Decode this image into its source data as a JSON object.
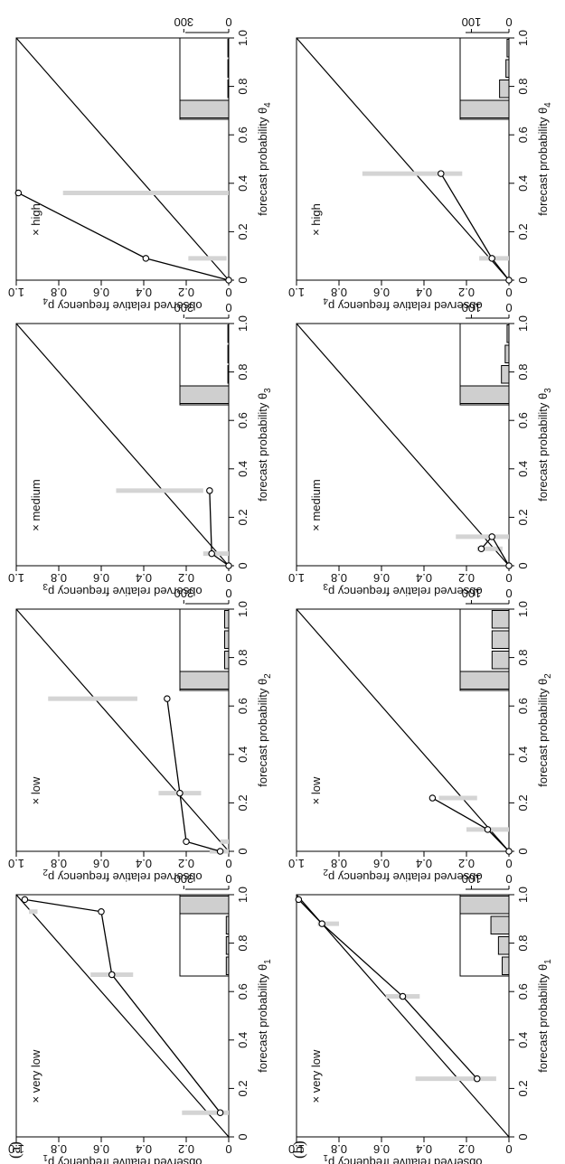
{
  "panel_labels": [
    "(a)",
    "(b)"
  ],
  "xticks": [
    "0",
    "0.2",
    "0.4",
    "0.6",
    "0.8",
    "1.0"
  ],
  "yticks": [
    "0",
    "0.2",
    "0.4",
    "0.6",
    "0.8",
    "1.0"
  ],
  "colors": {
    "ci_band": "#d4d4d4",
    "hist_fill": "#cfcfcf",
    "line": "#000000"
  },
  "chart_data": [
    {
      "type": "line",
      "panel": "(a)",
      "title": "× very low",
      "xlabel": "forecast probability θ",
      "xlabel_sub": "1",
      "ylabel": "observed relative frequency p",
      "ylabel_sub": "1",
      "xlim": [
        0,
        1
      ],
      "ylim": [
        0,
        1
      ],
      "series": [
        {
          "x": [
            0.1,
            0.67,
            0.93,
            0.98
          ],
          "y": [
            0.04,
            0.55,
            0.6,
            0.96
          ]
        }
      ],
      "bands": [
        {
          "x": 0.1,
          "lo": 0.0,
          "hi": 0.22
        },
        {
          "x": 0.67,
          "lo": 0.45,
          "hi": 0.65
        },
        {
          "x": 0.93,
          "lo": 0.9,
          "hi": 0.94
        }
      ],
      "hist": {
        "ticks": [
          "300",
          "0"
        ],
        "max": 300,
        "values": [
          15,
          15,
          15,
          300
        ]
      }
    },
    {
      "type": "line",
      "panel": "(a)",
      "title": "× low",
      "xlabel": "forecast probability θ",
      "xlabel_sub": "2",
      "ylabel": "observed relative frequency p",
      "ylabel_sub": "2",
      "xlim": [
        0,
        1
      ],
      "ylim": [
        0,
        1
      ],
      "series": [
        {
          "x": [
            0.0,
            0.04,
            0.24,
            0.63
          ],
          "y": [
            0.04,
            0.2,
            0.23,
            0.29
          ]
        }
      ],
      "bands": [
        {
          "x": 0.0,
          "lo": 0.0,
          "hi": 0.09
        },
        {
          "x": 0.04,
          "lo": 0.0,
          "hi": 0.04
        },
        {
          "x": 0.24,
          "lo": 0.13,
          "hi": 0.33
        },
        {
          "x": 0.63,
          "lo": 0.43,
          "hi": 0.85
        }
      ],
      "hist": {
        "ticks": [
          "300",
          "0"
        ],
        "max": 300,
        "values": [
          300,
          25,
          25,
          25
        ]
      }
    },
    {
      "type": "line",
      "panel": "(a)",
      "title": "× medium",
      "xlabel": "forecast probability θ",
      "xlabel_sub": "3",
      "ylabel": "observed relative frequency p",
      "ylabel_sub": "3",
      "xlim": [
        0,
        1
      ],
      "ylim": [
        0,
        1
      ],
      "series": [
        {
          "x": [
            0.0,
            0.05,
            0.31
          ],
          "y": [
            0.0,
            0.08,
            0.09
          ]
        }
      ],
      "bands": [
        {
          "x": 0.05,
          "lo": 0.0,
          "hi": 0.12
        },
        {
          "x": 0.31,
          "lo": 0.12,
          "hi": 0.53
        }
      ],
      "hist": {
        "ticks": [
          "300",
          "0"
        ],
        "max": 300,
        "values": [
          300,
          5,
          5,
          5
        ]
      }
    },
    {
      "type": "line",
      "panel": "(a)",
      "title": "× high",
      "xlabel": "forecast probability θ",
      "xlabel_sub": "4",
      "ylabel": "observed relative frequency p",
      "ylabel_sub": "4",
      "xlim": [
        0,
        1
      ],
      "ylim": [
        0,
        1
      ],
      "series": [
        {
          "x": [
            0.0,
            0.09,
            0.36
          ],
          "y": [
            0.0,
            0.39,
            0.99
          ]
        }
      ],
      "bands": [
        {
          "x": 0.09,
          "lo": 0.01,
          "hi": 0.19
        },
        {
          "x": 0.36,
          "lo": 0.0,
          "hi": 0.78
        }
      ],
      "hist": {
        "ticks": [
          "300",
          "0"
        ],
        "max": 300,
        "values": [
          300,
          5,
          5,
          5
        ]
      }
    },
    {
      "type": "line",
      "panel": "(b)",
      "title": "× very low",
      "xlabel": "forecast probability θ",
      "xlabel_sub": "1",
      "ylabel": "observed relative frequency p",
      "ylabel_sub": "1",
      "xlim": [
        0,
        1
      ],
      "ylim": [
        0,
        1
      ],
      "series": [
        {
          "x": [
            0.24,
            0.58,
            0.88,
            0.98
          ],
          "y": [
            0.15,
            0.5,
            0.88,
            0.99
          ]
        }
      ],
      "bands": [
        {
          "x": 0.24,
          "lo": 0.06,
          "hi": 0.44
        },
        {
          "x": 0.58,
          "lo": 0.42,
          "hi": 0.58
        },
        {
          "x": 0.88,
          "lo": 0.8,
          "hi": 0.9
        }
      ],
      "hist": {
        "ticks": [
          "100",
          "0"
        ],
        "max": 130,
        "values": [
          18,
          28,
          48,
          130
        ]
      }
    },
    {
      "type": "line",
      "panel": "(b)",
      "title": "× low",
      "xlabel": "forecast probability θ",
      "xlabel_sub": "2",
      "ylabel": "observed relative frequency p",
      "ylabel_sub": "2",
      "xlim": [
        0,
        1
      ],
      "ylim": [
        0,
        1
      ],
      "series": [
        {
          "x": [
            0.0,
            0.09,
            0.22
          ],
          "y": [
            0.0,
            0.1,
            0.36
          ]
        }
      ],
      "bands": [
        {
          "x": 0.09,
          "lo": 0.0,
          "hi": 0.2
        },
        {
          "x": 0.22,
          "lo": 0.15,
          "hi": 0.33
        }
      ],
      "hist": {
        "ticks": [
          "100",
          "0"
        ],
        "max": 130,
        "values": [
          130,
          45,
          45,
          45
        ]
      }
    },
    {
      "type": "line",
      "panel": "(b)",
      "title": "× medium",
      "xlabel": "forecast probability θ",
      "xlabel_sub": "3",
      "ylabel": "observed relative frequency p",
      "ylabel_sub": "3",
      "xlim": [
        0,
        1
      ],
      "ylim": [
        0,
        1
      ],
      "series": [
        {
          "x": [
            0.0,
            0.12,
            0.07
          ],
          "y": [
            0.0,
            0.08,
            0.13
          ]
        }
      ],
      "bands": [
        {
          "x": 0.07,
          "lo": 0.03,
          "hi": 0.15
        },
        {
          "x": 0.12,
          "lo": 0.0,
          "hi": 0.25
        }
      ],
      "hist": {
        "ticks": [
          "100",
          "0"
        ],
        "max": 130,
        "values": [
          130,
          20,
          10,
          5
        ]
      }
    },
    {
      "type": "line",
      "panel": "(b)",
      "title": "× high",
      "xlabel": "forecast probability θ",
      "xlabel_sub": "4",
      "ylabel": "observed relative frequency p",
      "ylabel_sub": "4",
      "xlim": [
        0,
        1
      ],
      "ylim": [
        0,
        1
      ],
      "series": [
        {
          "x": [
            0.0,
            0.09,
            0.44
          ],
          "y": [
            0.0,
            0.08,
            0.32
          ]
        }
      ],
      "bands": [
        {
          "x": 0.09,
          "lo": 0.0,
          "hi": 0.14
        },
        {
          "x": 0.44,
          "lo": 0.22,
          "hi": 0.69
        }
      ],
      "hist": {
        "ticks": [
          "100",
          "0"
        ],
        "max": 130,
        "values": [
          130,
          25,
          8,
          5
        ]
      }
    }
  ]
}
